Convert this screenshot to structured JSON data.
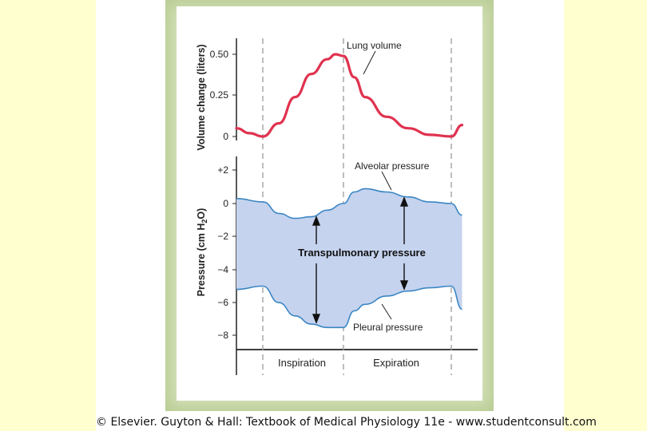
{
  "colors": {
    "background_side": "#ffffd0",
    "frame": "#d3e0b8",
    "lung_volume": "#e0324f",
    "pressure_lines": "#3b86c4",
    "pressure_fill": "#c5d3ee",
    "dashed": "#9a9a9a"
  },
  "caption": "© Elsevier. Guyton & Hall: Textbook of Medical Physiology 11e - www.studentconsult.com",
  "chart_data": [
    {
      "type": "line",
      "ylabel": "Volume change (liters)",
      "yticks": [
        "0.50",
        "0.25",
        "0"
      ],
      "ylim": [
        0,
        0.5
      ],
      "phase_x": [
        0,
        0.1,
        0.5,
        0.9,
        0.9,
        1.0
      ],
      "series": [
        {
          "name": "Lung volume",
          "x": [
            -0.1,
            -0.05,
            0.0,
            0.1,
            0.2,
            0.3,
            0.4,
            0.45,
            0.5,
            0.55,
            0.6,
            0.7,
            0.8,
            0.9,
            1.0,
            1.05
          ],
          "values": [
            0.05,
            0.02,
            0.0,
            0.08,
            0.24,
            0.38,
            0.47,
            0.5,
            0.49,
            0.36,
            0.24,
            0.12,
            0.05,
            0.01,
            0.0,
            0.07
          ]
        }
      ],
      "annotations": [
        "Lung volume"
      ]
    },
    {
      "type": "area",
      "ylabel": "Pressure (cm H2O)",
      "yticks": [
        "+2",
        "0",
        "−2",
        "−4",
        "−6",
        "−8"
      ],
      "ylim": [
        -8,
        2
      ],
      "xlabels": [
        "Inspiration",
        "Expiration"
      ],
      "series": [
        {
          "name": "Alveolar pressure",
          "x": [
            -0.1,
            0.0,
            0.1,
            0.2,
            0.3,
            0.4,
            0.5,
            0.55,
            0.6,
            0.7,
            0.8,
            0.9,
            1.0,
            1.05
          ],
          "values": [
            0.3,
            0.1,
            -0.6,
            -0.9,
            -0.8,
            -0.4,
            0.0,
            0.7,
            0.9,
            0.7,
            0.4,
            0.1,
            0.0,
            -0.7
          ]
        },
        {
          "name": "Pleural pressure",
          "x": [
            -0.1,
            0.0,
            0.1,
            0.2,
            0.3,
            0.4,
            0.5,
            0.55,
            0.6,
            0.7,
            0.8,
            0.9,
            1.0,
            1.05
          ],
          "values": [
            -5.2,
            -5.0,
            -6.0,
            -6.8,
            -7.3,
            -7.5,
            -7.5,
            -6.5,
            -6.1,
            -5.6,
            -5.3,
            -5.1,
            -5.0,
            -6.4
          ]
        }
      ],
      "annotations": [
        "Alveolar pressure",
        "Transpulmonary pressure",
        "Pleural pressure"
      ]
    }
  ]
}
